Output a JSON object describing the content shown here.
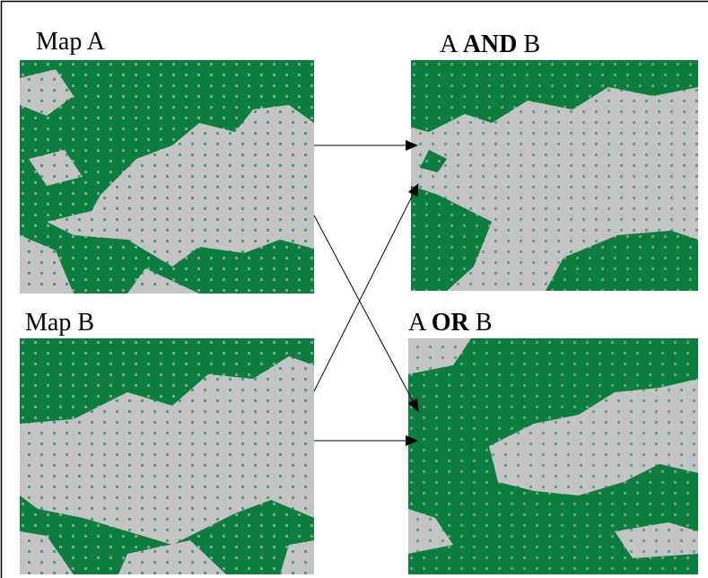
{
  "maps": [
    {
      "label": "Map A"
    },
    {
      "label": "Map B"
    },
    {
      "label": {
        "prefix": "A ",
        "operator": "AND",
        "suffix": " B"
      }
    },
    {
      "label": {
        "prefix": "A ",
        "operator": "OR",
        "suffix": " B"
      }
    }
  ]
}
